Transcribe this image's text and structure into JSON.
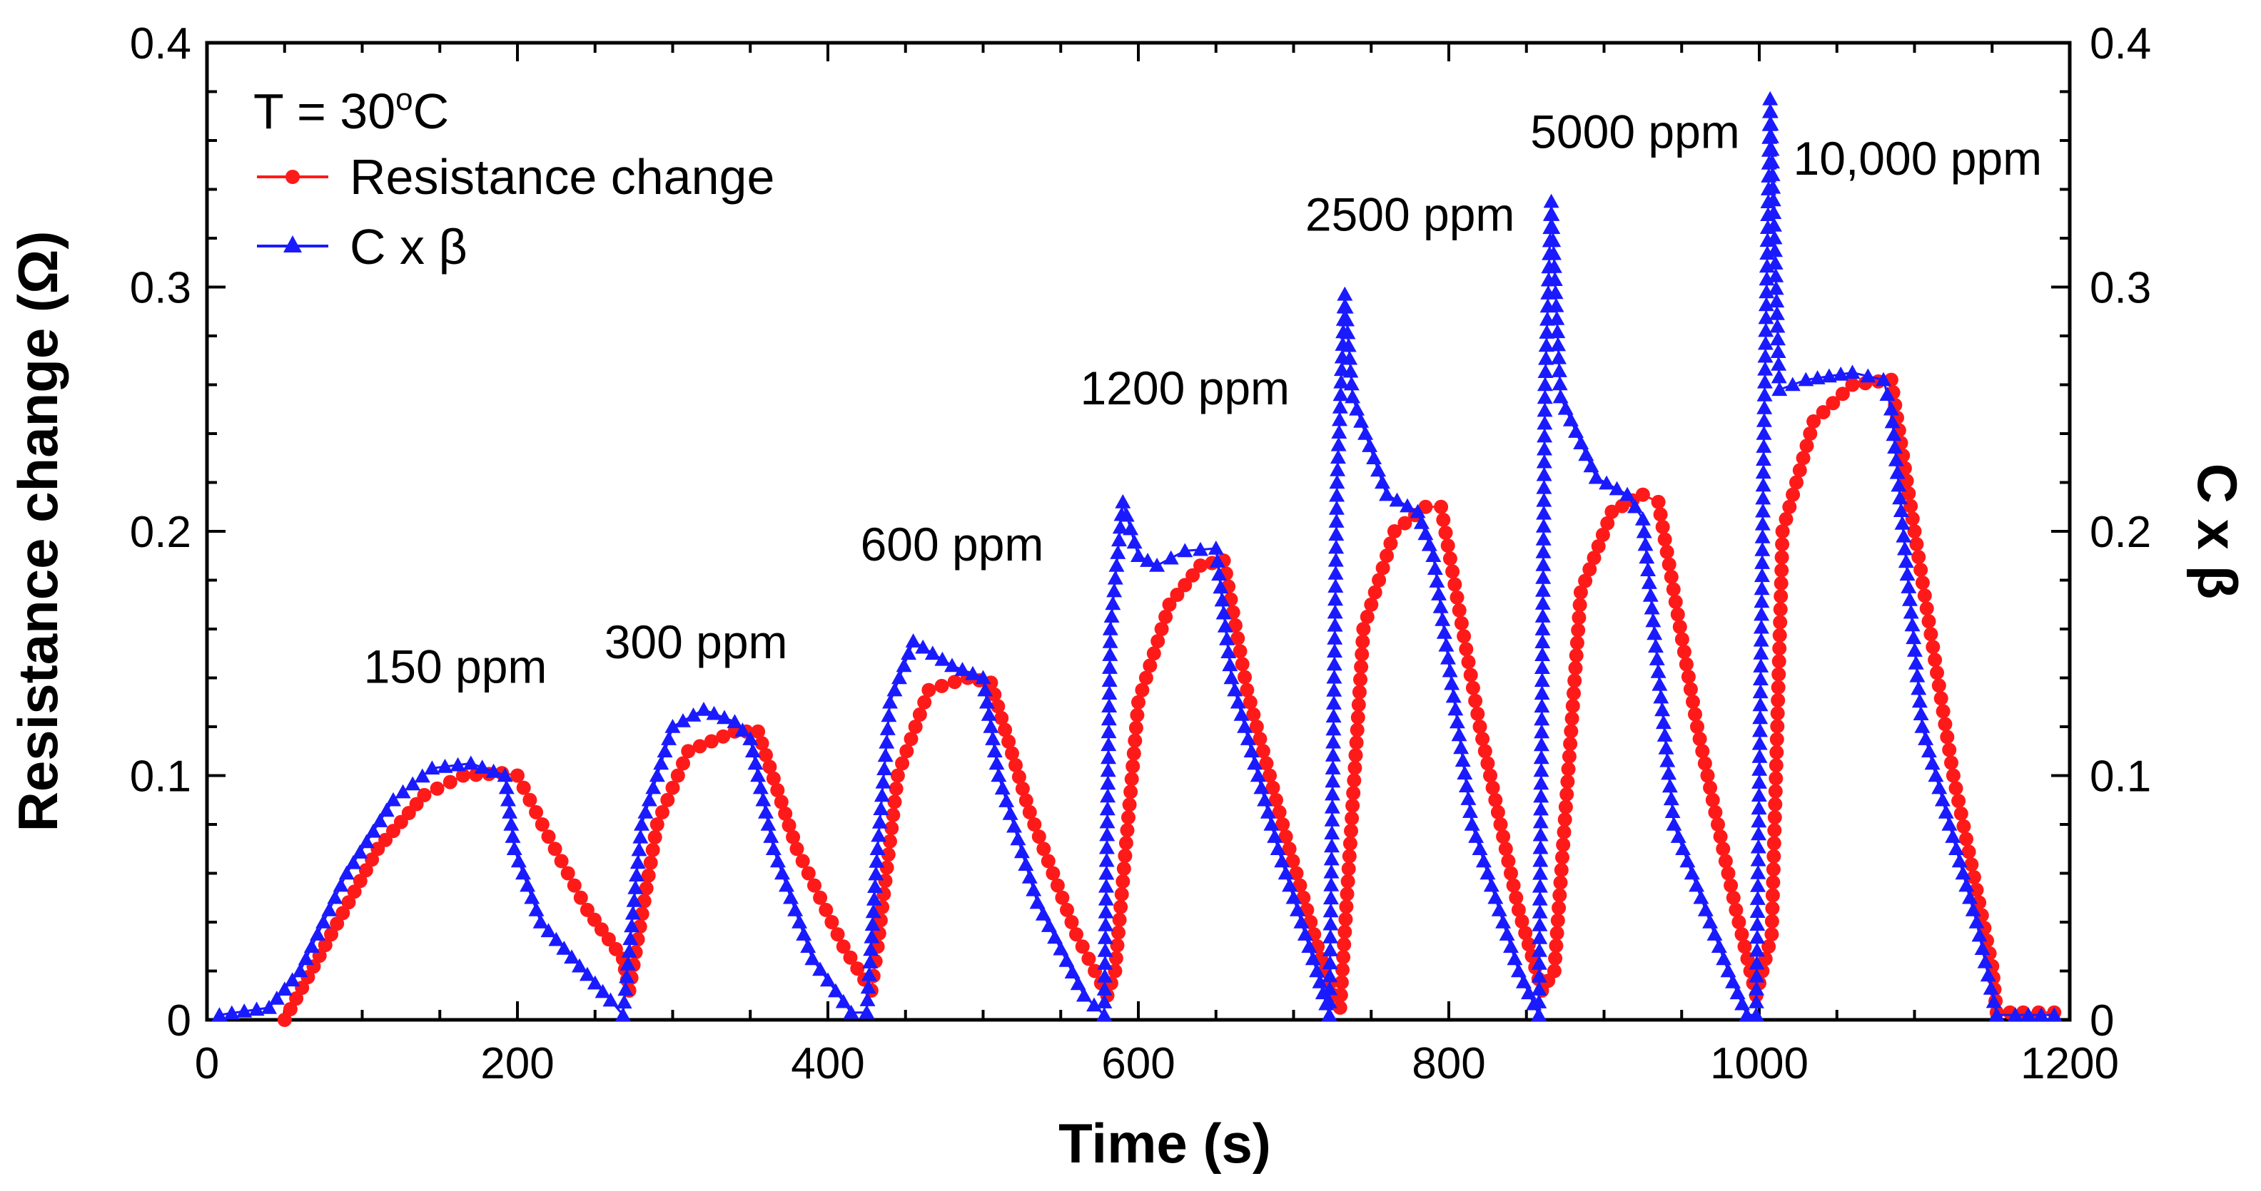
{
  "chart_data": {
    "type": "line",
    "title": "",
    "xlabel": "Time (s)",
    "ylabel": "Resistance change (Ω)",
    "y2label": "C x β",
    "xlim": [
      0,
      1200
    ],
    "ylim": [
      0,
      0.4
    ],
    "y2lim": [
      0,
      0.4
    ],
    "xticks": [
      "0",
      "200",
      "400",
      "600",
      "800",
      "1000",
      "1200"
    ],
    "yticks": [
      "0",
      "0.1",
      "0.2",
      "0.3",
      "0.4"
    ],
    "y2ticks": [
      "0",
      "0.1",
      "0.2",
      "0.3",
      "0.4"
    ],
    "grid": false,
    "legend": {
      "placement": "top-left",
      "temperature": "T = 30",
      "temperature_sup": "o",
      "temperature_unit": "C"
    },
    "annotations": [
      {
        "text": "150 ppm",
        "x": 160,
        "y": 0.138
      },
      {
        "text": "300 ppm",
        "x": 315,
        "y": 0.148
      },
      {
        "text": "600 ppm",
        "x": 480,
        "y": 0.188
      },
      {
        "text": "1200 ppm",
        "x": 630,
        "y": 0.252
      },
      {
        "text": "2500 ppm",
        "x": 775,
        "y": 0.323
      },
      {
        "text": "5000 ppm",
        "x": 920,
        "y": 0.357
      },
      {
        "text": "10,000 ppm",
        "x": 1102,
        "y": 0.346
      }
    ],
    "series": [
      {
        "name": "Resistance change",
        "color": "#ff1a1a",
        "marker": "circle",
        "x": [
          50,
          80,
          110,
          140,
          165,
          190,
          200,
          220,
          245,
          268,
          272,
          290,
          310,
          340,
          355,
          380,
          410,
          428,
          432,
          445,
          465,
          490,
          505,
          530,
          560,
          580,
          585,
          600,
          620,
          640,
          655,
          670,
          695,
          720,
          730,
          745,
          765,
          785,
          795,
          820,
          845,
          860,
          868,
          885,
          905,
          925,
          935,
          960,
          985,
          998,
          1008,
          1015,
          1035,
          1060,
          1085,
          1100,
          1125,
          1150,
          1153,
          1170,
          1190
        ],
        "values": [
          0,
          0.035,
          0.07,
          0.092,
          0.1,
          0.101,
          0.1,
          0.075,
          0.045,
          0.025,
          0.012,
          0.08,
          0.11,
          0.118,
          0.118,
          0.07,
          0.03,
          0.012,
          0.03,
          0.1,
          0.135,
          0.14,
          0.138,
          0.085,
          0.035,
          0.01,
          0.02,
          0.13,
          0.17,
          0.186,
          0.188,
          0.135,
          0.075,
          0.02,
          0.005,
          0.16,
          0.2,
          0.21,
          0.21,
          0.12,
          0.045,
          0.012,
          0.02,
          0.175,
          0.208,
          0.215,
          0.212,
          0.12,
          0.045,
          0.01,
          0.035,
          0.2,
          0.245,
          0.26,
          0.262,
          0.2,
          0.1,
          0.022,
          0.003,
          0.003,
          0.003
        ]
      },
      {
        "name": "C x β",
        "color": "#1a1aff",
        "marker": "triangle",
        "x": [
          8,
          40,
          60,
          90,
          120,
          145,
          170,
          192,
          198,
          215,
          240,
          260,
          268,
          280,
          300,
          320,
          340,
          350,
          365,
          390,
          415,
          425,
          432,
          440,
          455,
          480,
          500,
          510,
          535,
          565,
          578,
          582,
          590,
          600,
          612,
          630,
          650,
          660,
          690,
          715,
          723,
          728,
          733,
          738,
          760,
          780,
          790,
          815,
          845,
          858,
          862,
          866,
          872,
          895,
          915,
          925,
          945,
          980,
          992,
          998,
          1003,
          1007,
          1013,
          1030,
          1060,
          1080,
          1085,
          1105,
          1140,
          1153,
          1165,
          1190
        ],
        "values": [
          0.002,
          0.005,
          0.02,
          0.06,
          0.09,
          0.103,
          0.105,
          0.1,
          0.07,
          0.04,
          0.022,
          0.008,
          0.002,
          0.08,
          0.12,
          0.127,
          0.122,
          0.115,
          0.07,
          0.025,
          0.003,
          0.003,
          0.07,
          0.13,
          0.155,
          0.145,
          0.14,
          0.1,
          0.048,
          0.01,
          0.002,
          0.16,
          0.212,
          0.19,
          0.186,
          0.192,
          0.193,
          0.14,
          0.07,
          0.02,
          0.002,
          0.22,
          0.297,
          0.255,
          0.215,
          0.208,
          0.19,
          0.08,
          0.02,
          0.002,
          0.26,
          0.335,
          0.255,
          0.222,
          0.215,
          0.205,
          0.08,
          0.02,
          0.002,
          0.002,
          0.24,
          0.377,
          0.258,
          0.262,
          0.265,
          0.262,
          0.25,
          0.12,
          0.04,
          0.002,
          0.002,
          0.002
        ]
      }
    ]
  }
}
